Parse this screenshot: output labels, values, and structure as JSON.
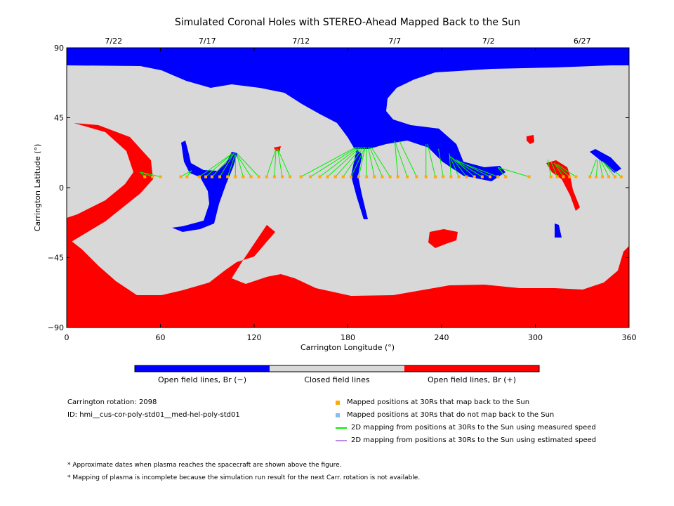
{
  "chart_data": {
    "type": "map",
    "title": "Simulated Coronal Holes with STEREO-Ahead Mapped Back to the Sun",
    "xlabel": "Carrington Longitude (°)",
    "ylabel": "Carrington Latitude (°)",
    "xlim": [
      0,
      360
    ],
    "ylim": [
      -90,
      90
    ],
    "x_ticks": [
      "0",
      "60",
      "120",
      "180",
      "240",
      "300",
      "360"
    ],
    "y_ticks": [
      "90",
      "45",
      "0",
      "−45",
      "−90"
    ],
    "top_axis_dates": [
      {
        "label": "7/22",
        "lon": 30
      },
      {
        "label": "7/17",
        "lon": 90
      },
      {
        "label": "7/12",
        "lon": 150
      },
      {
        "label": "7/7",
        "lon": 210
      },
      {
        "label": "7/2",
        "lon": 270
      },
      {
        "label": "6/27",
        "lon": 330
      }
    ],
    "colors": {
      "open_negative": "#0000ff",
      "closed": "#d8d8d8",
      "open_positive": "#ff0000",
      "mapped_back": "#ffaa00",
      "not_mapped": "#88bbee",
      "measured_speed": "#00ee00",
      "estimated_speed": "#bb88ee"
    },
    "mapped_latitude": 7,
    "mappings": [
      {
        "from": 50,
        "to_lon": 47,
        "to_lat": 10
      },
      {
        "from": 55,
        "to_lon": 47,
        "to_lat": 10
      },
      {
        "from": 60,
        "to_lon": 47,
        "to_lat": 10
      },
      {
        "from": 73,
        "to_lon": 80,
        "to_lat": 11
      },
      {
        "from": 77,
        "to_lon": 80,
        "to_lat": 11
      },
      {
        "from": 85,
        "to_lon": 106,
        "to_lat": 22
      },
      {
        "from": 89,
        "to_lon": 106,
        "to_lat": 22
      },
      {
        "from": 93,
        "to_lon": 107,
        "to_lat": 22
      },
      {
        "from": 98,
        "to_lon": 107,
        "to_lat": 22
      },
      {
        "from": 103,
        "to_lon": 108,
        "to_lat": 22
      },
      {
        "from": 108,
        "to_lon": 108,
        "to_lat": 21
      },
      {
        "from": 113,
        "to_lon": 109,
        "to_lat": 21
      },
      {
        "from": 118,
        "to_lon": 109,
        "to_lat": 21
      },
      {
        "from": 123,
        "to_lon": 109,
        "to_lat": 22
      },
      {
        "from": 128,
        "to_lon": 134,
        "to_lat": 25
      },
      {
        "from": 133,
        "to_lon": 134,
        "to_lat": 25
      },
      {
        "from": 138,
        "to_lon": 135,
        "to_lat": 25
      },
      {
        "from": 143,
        "to_lon": 135,
        "to_lat": 25
      },
      {
        "from": 150,
        "to_lon": 185,
        "to_lat": 26
      },
      {
        "from": 156,
        "to_lon": 186,
        "to_lat": 26
      },
      {
        "from": 162,
        "to_lon": 187,
        "to_lat": 26
      },
      {
        "from": 167,
        "to_lon": 188,
        "to_lat": 26
      },
      {
        "from": 172,
        "to_lon": 189,
        "to_lat": 26
      },
      {
        "from": 177,
        "to_lon": 190,
        "to_lat": 26
      },
      {
        "from": 182,
        "to_lon": 191,
        "to_lat": 26
      },
      {
        "from": 187,
        "to_lon": 191,
        "to_lat": 26
      },
      {
        "from": 192,
        "to_lon": 192,
        "to_lat": 26
      },
      {
        "from": 197,
        "to_lon": 193,
        "to_lat": 26
      },
      {
        "from": 202,
        "to_lon": 194,
        "to_lat": 26
      },
      {
        "from": 207,
        "to_lon": 195,
        "to_lat": 26
      },
      {
        "from": 212,
        "to_lon": 210,
        "to_lat": 30
      },
      {
        "from": 218,
        "to_lon": 210,
        "to_lat": 30
      },
      {
        "from": 224,
        "to_lon": 213,
        "to_lat": 30
      },
      {
        "from": 230,
        "to_lon": 230,
        "to_lat": 28
      },
      {
        "from": 236,
        "to_lon": 231,
        "to_lat": 28
      },
      {
        "from": 241,
        "to_lon": 238,
        "to_lat": 25
      },
      {
        "from": 246,
        "to_lon": 245,
        "to_lat": 22
      },
      {
        "from": 251,
        "to_lon": 245,
        "to_lat": 21
      },
      {
        "from": 256,
        "to_lon": 246,
        "to_lat": 20
      },
      {
        "from": 261,
        "to_lon": 247,
        "to_lat": 19
      },
      {
        "from": 266,
        "to_lon": 248,
        "to_lat": 18
      },
      {
        "from": 271,
        "to_lon": 249,
        "to_lat": 18
      },
      {
        "from": 276,
        "to_lon": 250,
        "to_lat": 17
      },
      {
        "from": 281,
        "to_lon": 276,
        "to_lat": 13
      },
      {
        "from": 296,
        "to_lon": 276,
        "to_lat": 13
      },
      {
        "from": 310,
        "to_lon": 308,
        "to_lat": 18
      },
      {
        "from": 314,
        "to_lon": 310,
        "to_lat": 17
      },
      {
        "from": 318,
        "to_lon": 312,
        "to_lat": 16
      },
      {
        "from": 322,
        "to_lon": 313,
        "to_lat": 15
      },
      {
        "from": 326,
        "to_lon": 314,
        "to_lat": 15
      },
      {
        "from": 335,
        "to_lon": 339,
        "to_lat": 18
      },
      {
        "from": 339,
        "to_lon": 340,
        "to_lat": 18
      },
      {
        "from": 343,
        "to_lon": 341,
        "to_lat": 18
      },
      {
        "from": 347,
        "to_lon": 342,
        "to_lat": 17
      },
      {
        "from": 351,
        "to_lon": 343,
        "to_lat": 17
      },
      {
        "from": 355,
        "to_lon": 344,
        "to_lat": 16
      }
    ]
  },
  "colorbar": {
    "labels": [
      "Open field lines, Br (−)",
      "Closed field lines",
      "Open field lines, Br (+)"
    ]
  },
  "info": {
    "rotation": "Carrington rotation: 2098",
    "id": "ID: hmi__cus-cor-poly-std01__med-hel-poly-std01"
  },
  "legend": [
    "Mapped positions at 30Rs that map back to the Sun",
    "Mapped positions at 30Rs that do not map back to the Sun",
    "2D mapping from positions at 30Rs to the Sun using measured speed",
    "2D mapping from positions at 30Rs to the Sun using estimated speed"
  ],
  "notes": [
    "* Approximate dates when plasma reaches the spacecraft are shown above the figure.",
    "* Mapping of plasma is incomplete because the simulation run result for the next Carr. rotation is not available."
  ]
}
